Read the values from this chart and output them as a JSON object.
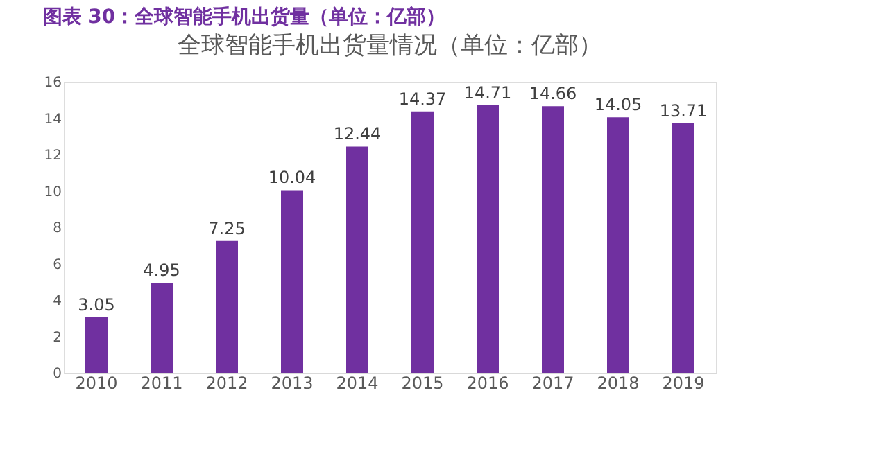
{
  "chart_data": {
    "type": "bar",
    "title": "图表 30：全球智能手机出货量（单位：亿部）",
    "subtitle": "全球智能手机出货量情况（单位：亿部）",
    "categories": [
      "2010",
      "2011",
      "2012",
      "2013",
      "2014",
      "2015",
      "2016",
      "2017",
      "2018",
      "2019"
    ],
    "values": [
      3.05,
      4.95,
      7.25,
      10.04,
      12.44,
      14.37,
      14.71,
      14.66,
      14.05,
      13.71
    ],
    "color": "#7030a0",
    "ylim": [
      0,
      16
    ],
    "yticks": [
      0,
      2,
      4,
      6,
      8,
      10,
      12,
      14,
      16
    ],
    "grid": false,
    "data_labels": true
  }
}
